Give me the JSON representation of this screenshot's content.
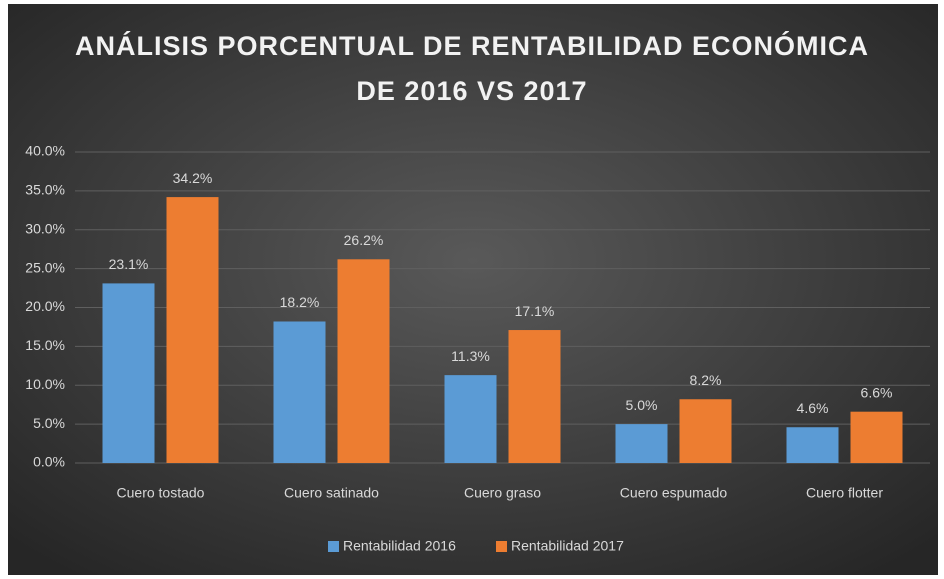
{
  "chart_data": {
    "type": "bar",
    "title": [
      "ANÁLISIS PORCENTUAL DE RENTABILIDAD ECONÓMICA",
      "DE 2016 VS 2017"
    ],
    "categories": [
      "Cuero tostado",
      "Cuero satinado",
      "Cuero graso",
      "Cuero espumado",
      "Cuero flotter"
    ],
    "series": [
      {
        "name": "Rentabilidad 2016",
        "color": "#5b9bd5",
        "values": [
          23.1,
          18.2,
          11.3,
          5.0,
          4.6
        ],
        "value_labels": [
          "23.1%",
          "18.2%",
          "11.3%",
          "5.0%",
          "4.6%"
        ]
      },
      {
        "name": "Rentabilidad 2017",
        "color": "#ed7d31",
        "values": [
          34.2,
          26.2,
          17.1,
          8.2,
          6.6
        ],
        "value_labels": [
          "34.2%",
          "26.2%",
          "17.1%",
          "8.2%",
          "6.6%"
        ]
      }
    ],
    "ylim": [
      0,
      40
    ],
    "yticks": [
      {
        "value": 0,
        "label": "0.0%"
      },
      {
        "value": 5,
        "label": "5.0%"
      },
      {
        "value": 10,
        "label": "10.0%"
      },
      {
        "value": 15,
        "label": "15.0%"
      },
      {
        "value": 20,
        "label": "20.0%"
      },
      {
        "value": 25,
        "label": "25.0%"
      },
      {
        "value": 30,
        "label": "30.0%"
      },
      {
        "value": 35,
        "label": "35.0%"
      },
      {
        "value": 40,
        "label": "40.0%"
      }
    ],
    "grid": true,
    "legend": "bottom"
  }
}
